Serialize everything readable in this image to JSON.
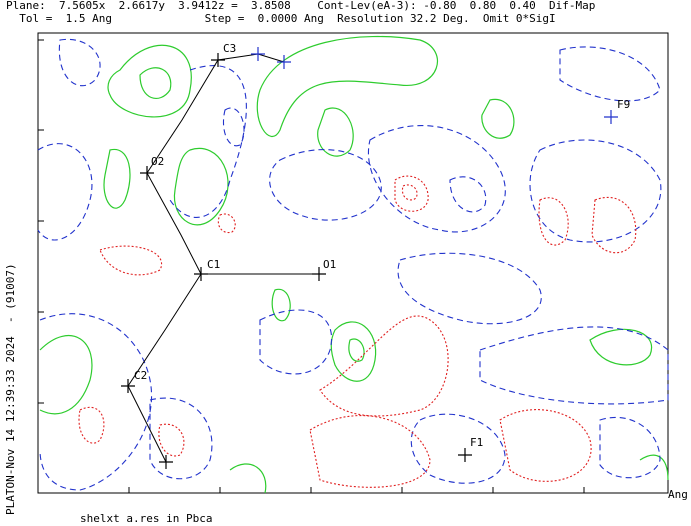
{
  "header": {
    "lines": [
      "Plane:  7.5605x  2.6617y  3.9412z =  3.8508    Cont-Lev(eA-3): -0.80  0.80  0.40  Dif-Map",
      "  Tol =  1.5 Ang              Step =  0.0000 Ang  Resolution 32.2 Deg.  Omit 0*SigI"
    ]
  },
  "side_label": "PLATON-Nov 14 12:39:33 2024  - (91007)",
  "axis_label": "Ang",
  "footer": "shelxt a.res in Pbca",
  "atoms": [
    {
      "label": "C3"
    },
    {
      "label": "O2"
    },
    {
      "label": "C1"
    },
    {
      "label": "O1"
    },
    {
      "label": "C2"
    },
    {
      "label": "F9"
    },
    {
      "label": "F1"
    }
  ]
}
